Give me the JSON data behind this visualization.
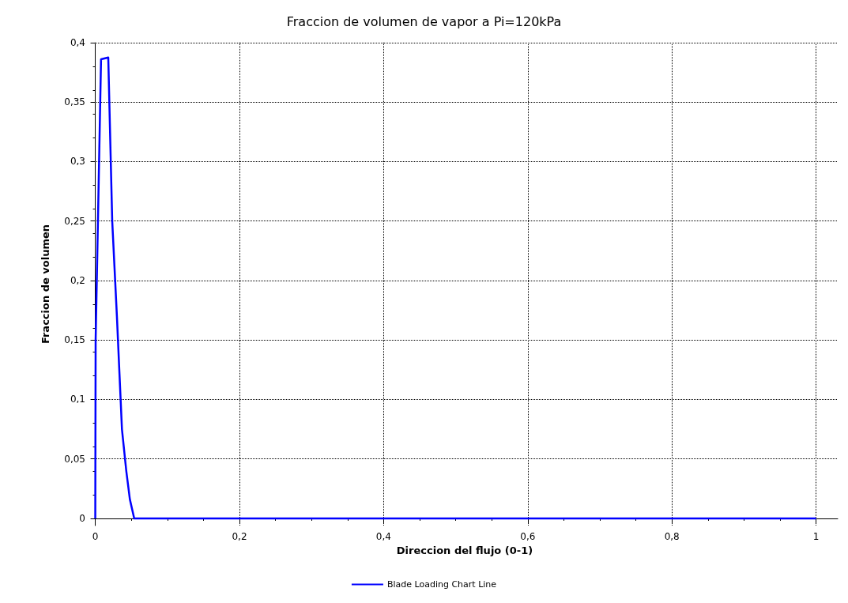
{
  "chart_data": {
    "type": "line",
    "title": "Fraccion de volumen de vapor a Pi=120kPa",
    "xlabel": "Direccion del flujo (0-1)",
    "ylabel": "Fraccion de volumen",
    "series": [
      {
        "name": "Blade Loading Chart Line",
        "color": "#0000ff",
        "x": [
          0,
          0.0005,
          0.008,
          0.018,
          0.0235,
          0.03,
          0.037,
          0.043,
          0.048,
          0.054,
          1
        ],
        "values": [
          0,
          0.15,
          0.386,
          0.3875,
          0.25,
          0.17,
          0.075,
          0.04,
          0.016,
          0,
          0
        ]
      }
    ],
    "xlim": [
      -0.005,
      1.03
    ],
    "xticks": [
      {
        "value": 0,
        "label": "0"
      },
      {
        "value": 0.2,
        "label": "0,2"
      },
      {
        "value": 0.4,
        "label": "0,4"
      },
      {
        "value": 0.6,
        "label": "0,6"
      },
      {
        "value": 0.8,
        "label": "0,8"
      },
      {
        "value": 1,
        "label": "1"
      }
    ],
    "ylim": [
      -0.006,
      0.4
    ],
    "yticks": [
      {
        "value": 0,
        "label": "0"
      },
      {
        "value": 0.05,
        "label": "0,05"
      },
      {
        "value": 0.1,
        "label": "0,1"
      },
      {
        "value": 0.15,
        "label": "0,15"
      },
      {
        "value": 0.2,
        "label": "0,2"
      },
      {
        "value": 0.25,
        "label": "0,25"
      },
      {
        "value": 0.3,
        "label": "0,3"
      },
      {
        "value": 0.35,
        "label": "0,35"
      },
      {
        "value": 0.4,
        "label": "0,4"
      }
    ],
    "grid": true,
    "legend": "bottom",
    "marker": "none",
    "line_style": "solid"
  }
}
